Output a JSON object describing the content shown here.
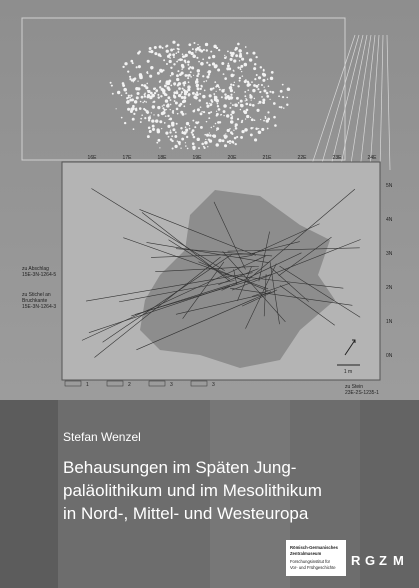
{
  "author": "Stefan Wenzel",
  "title": [
    "Behausungen im Späten Jung-",
    "paläolithikum und im Mesolithikum",
    "in Nord-, Mittel- und Westeuropa"
  ],
  "publisher": {
    "name_lines": [
      "Römisch-Germanisches",
      "Zentralmuseum",
      "Forschungsinstitut für",
      "Vor- und Frühgeschichte"
    ],
    "acronym": [
      "R",
      "G",
      "Z",
      "M"
    ]
  },
  "map": {
    "x_labels": [
      "16E",
      "17E",
      "18E",
      "19E",
      "20E",
      "21E",
      "22E",
      "23E",
      "24E"
    ],
    "y_labels": [
      "5N",
      "4N",
      "3N",
      "2N",
      "1N",
      "0N"
    ],
    "annotations": [
      [
        "zu Abschlag",
        "15E-3N-1264-5"
      ],
      [
        "zu Stichel an",
        "Bruchkante",
        "15E-3N-1264-3"
      ],
      [
        "zu Stein",
        "23E-2S-1235-1"
      ]
    ],
    "legend": [
      "1",
      "2",
      "3",
      "3"
    ],
    "scale": "1 m"
  }
}
